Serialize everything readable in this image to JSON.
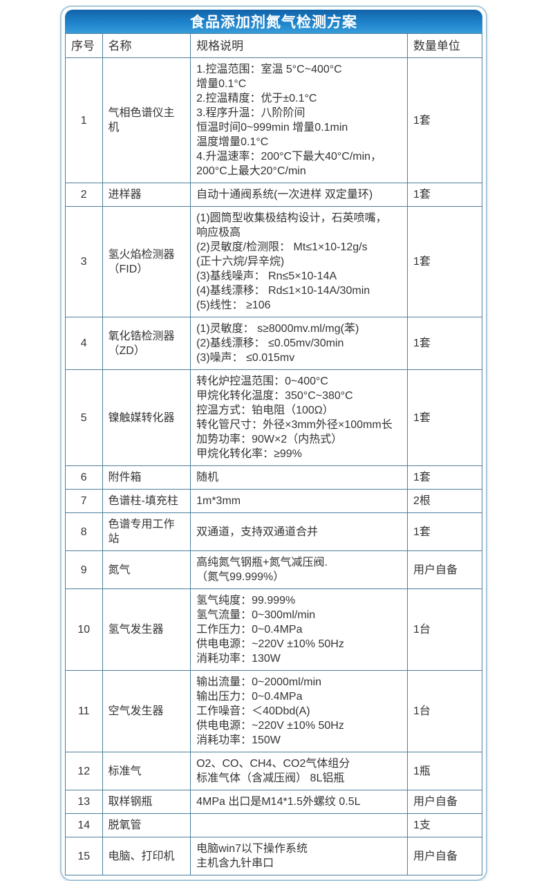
{
  "page": {
    "title": "食品添加剂氮气检测方案"
  },
  "colors": {
    "accent_blue_top": "#1263a8",
    "accent_blue_bottom": "#369cd9",
    "grid_line": "#4b7e9d",
    "card_border": "#aac8db",
    "title_text": "#ffffff",
    "body_text": "#333333"
  },
  "table": {
    "headers": [
      "序号",
      "名称",
      "规格说明",
      "数量单位"
    ],
    "rows": [
      {
        "no": "1",
        "name": "气相色谱仪主机",
        "spec": [
          "1.控温范围：室温 5°C~400°C",
          "增量0.1°C",
          "2.控温精度：优于±0.1°C",
          "3.程序升温：八阶阶间",
          "恒温时间0~999min 增量0.1min",
          "温度增量0.1°C",
          "4.升温速率：200°C下最大40°C/min，",
          "200°C上最大20°C/min"
        ],
        "qty": "1套"
      },
      {
        "no": "2",
        "name": "进样器",
        "spec": [
          "自动十通阀系统(一次进样 双定量环)"
        ],
        "qty": "1套"
      },
      {
        "no": "3",
        "name": "氢火焰检测器（FID）",
        "spec": [
          "(1)圆筒型收集极结构设计，石英喷嘴，",
          "响应极高",
          "(2)灵敏度/检测限： Mt≤1×10-12g/s",
          "(正十六烷/异辛烷)",
          "(3)基线噪声： Rn≤5×10-14A",
          "(4)基线漂移： Rd≤1×10-14A/30min",
          "(5)线性： ≥106"
        ],
        "qty": "1套"
      },
      {
        "no": "4",
        "name": "氧化锆检测器（ZD）",
        "spec": [
          "(1)灵敏度： s≥8000mv.ml/mg(苯)",
          "(2)基线漂移： ≤0.05mv/30min",
          "(3)噪声： ≤0.015mv"
        ],
        "qty": "1套"
      },
      {
        "no": "5",
        "name": "镍触媒转化器",
        "spec": [
          "转化炉控温范围：0~400°C",
          "甲烷化转化温度：350°C~380°C",
          "控温方式：铂电阻（100Ω）",
          "转化管尺寸：外径×3mm外径×100mm长",
          "加势功率：90W×2（内热式）",
          "甲烷化转化率：≥99%"
        ],
        "qty": "1套"
      },
      {
        "no": "6",
        "name": "附件箱",
        "spec": [
          "随机"
        ],
        "qty": "1套"
      },
      {
        "no": "7",
        "name": "色谱柱-填充柱",
        "spec": [
          "1m*3mm"
        ],
        "qty": "2根"
      },
      {
        "no": "8",
        "name": "色谱专用工作站",
        "spec": [
          "双通道，支持双通道合并"
        ],
        "qty": "1套"
      },
      {
        "no": "9",
        "name": "氮气",
        "spec": [
          "高纯氮气钢瓶+氮气减压阀.",
          "（氮气99.999%）"
        ],
        "qty": "用户自备"
      },
      {
        "no": "10",
        "name": "氢气发生器",
        "spec": [
          "氢气纯度：99.999%",
          "氢气流量：0~300ml/min",
          "工作压力：0~0.4MPa",
          "供电电源：~220V ±10% 50Hz",
          "消耗功率：130W"
        ],
        "qty": "1台"
      },
      {
        "no": "11",
        "name": "空气发生器",
        "spec": [
          "输出流量：0~2000ml/min",
          "输出压力：0~0.4MPa",
          "工作噪音：＜40Dbd(A)",
          "供电电源：~220V ±10% 50Hz",
          "消耗功率：150W"
        ],
        "qty": "1台"
      },
      {
        "no": "12",
        "name": "标准气",
        "spec": [
          "O2、CO、CH4、CO2气体组分",
          "标准气体（含减压阀） 8L铝瓶"
        ],
        "qty": "1瓶"
      },
      {
        "no": "13",
        "name": "取样钢瓶",
        "spec": [
          "4MPa 出口是M14*1.5外螺纹 0.5L"
        ],
        "qty": "用户自备"
      },
      {
        "no": "14",
        "name": "脱氧管",
        "spec": [],
        "qty": "1支"
      },
      {
        "no": "15",
        "name": "电脑、打印机",
        "spec": [
          "电脑win7以下操作系统",
          "主机含九针串口"
        ],
        "qty": "用户自备"
      }
    ]
  }
}
